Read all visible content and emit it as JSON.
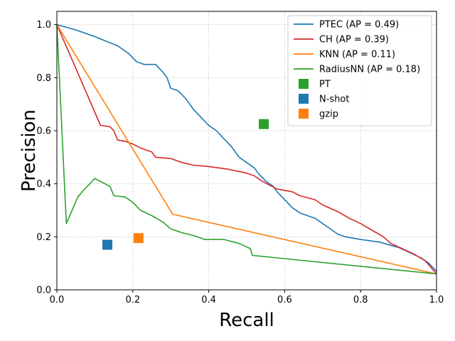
{
  "chart_data": {
    "type": "line",
    "xlabel": "Recall",
    "ylabel": "Precision",
    "xlim": [
      0,
      1
    ],
    "ylim": [
      0,
      1.05
    ],
    "xticks": [
      "0.0",
      "0.2",
      "0.4",
      "0.6",
      "0.8",
      "1.0"
    ],
    "yticks": [
      "0.0",
      "0.2",
      "0.4",
      "0.6",
      "0.8",
      "1.0"
    ],
    "grid": true,
    "legend_position": "top-right",
    "series": [
      {
        "name": "PTEC (AP = 0.49)",
        "color": "#1f77b4",
        "points": [
          [
            0,
            1.0
          ],
          [
            0.05,
            0.98
          ],
          [
            0.1,
            0.955
          ],
          [
            0.16,
            0.92
          ],
          [
            0.19,
            0.89
          ],
          [
            0.21,
            0.86
          ],
          [
            0.23,
            0.85
          ],
          [
            0.26,
            0.85
          ],
          [
            0.28,
            0.82
          ],
          [
            0.29,
            0.8
          ],
          [
            0.3,
            0.76
          ],
          [
            0.32,
            0.75
          ],
          [
            0.34,
            0.72
          ],
          [
            0.36,
            0.68
          ],
          [
            0.38,
            0.65
          ],
          [
            0.4,
            0.62
          ],
          [
            0.42,
            0.6
          ],
          [
            0.44,
            0.57
          ],
          [
            0.46,
            0.54
          ],
          [
            0.48,
            0.5
          ],
          [
            0.5,
            0.48
          ],
          [
            0.52,
            0.46
          ],
          [
            0.53,
            0.44
          ],
          [
            0.55,
            0.41
          ],
          [
            0.57,
            0.39
          ],
          [
            0.58,
            0.37
          ],
          [
            0.6,
            0.34
          ],
          [
            0.62,
            0.31
          ],
          [
            0.64,
            0.29
          ],
          [
            0.66,
            0.28
          ],
          [
            0.68,
            0.27
          ],
          [
            0.7,
            0.25
          ],
          [
            0.72,
            0.23
          ],
          [
            0.74,
            0.21
          ],
          [
            0.76,
            0.2
          ],
          [
            0.8,
            0.19
          ],
          [
            0.85,
            0.18
          ],
          [
            0.9,
            0.16
          ],
          [
            0.93,
            0.14
          ],
          [
            0.96,
            0.12
          ],
          [
            0.98,
            0.1
          ],
          [
            1.0,
            0.07
          ]
        ]
      },
      {
        "name": "CH (AP = 0.39)",
        "color": "#d62728",
        "points": [
          [
            0,
            1.0
          ],
          [
            0.115,
            0.62
          ],
          [
            0.14,
            0.615
          ],
          [
            0.15,
            0.6
          ],
          [
            0.16,
            0.565
          ],
          [
            0.18,
            0.56
          ],
          [
            0.2,
            0.55
          ],
          [
            0.22,
            0.535
          ],
          [
            0.25,
            0.52
          ],
          [
            0.26,
            0.5
          ],
          [
            0.3,
            0.495
          ],
          [
            0.33,
            0.48
          ],
          [
            0.36,
            0.47
          ],
          [
            0.4,
            0.465
          ],
          [
            0.45,
            0.455
          ],
          [
            0.5,
            0.44
          ],
          [
            0.52,
            0.43
          ],
          [
            0.54,
            0.41
          ],
          [
            0.58,
            0.38
          ],
          [
            0.62,
            0.37
          ],
          [
            0.64,
            0.355
          ],
          [
            0.68,
            0.34
          ],
          [
            0.7,
            0.32
          ],
          [
            0.74,
            0.295
          ],
          [
            0.77,
            0.27
          ],
          [
            0.8,
            0.25
          ],
          [
            0.83,
            0.225
          ],
          [
            0.86,
            0.2
          ],
          [
            0.88,
            0.175
          ],
          [
            0.91,
            0.155
          ],
          [
            0.94,
            0.135
          ],
          [
            0.97,
            0.11
          ],
          [
            1.0,
            0.06
          ]
        ]
      },
      {
        "name": "KNN (AP = 0.11)",
        "color": "#ff7f0e",
        "points": [
          [
            0,
            1.0
          ],
          [
            0.305,
            0.285
          ],
          [
            1.0,
            0.06
          ]
        ]
      },
      {
        "name": "RadiusNN (AP = 0.18)",
        "color": "#2ca02c",
        "points": [
          [
            0,
            1.0
          ],
          [
            0.025,
            0.25
          ],
          [
            0.04,
            0.3
          ],
          [
            0.055,
            0.35
          ],
          [
            0.07,
            0.375
          ],
          [
            0.08,
            0.39
          ],
          [
            0.1,
            0.42
          ],
          [
            0.12,
            0.405
          ],
          [
            0.14,
            0.39
          ],
          [
            0.15,
            0.355
          ],
          [
            0.18,
            0.35
          ],
          [
            0.2,
            0.33
          ],
          [
            0.22,
            0.3
          ],
          [
            0.25,
            0.28
          ],
          [
            0.28,
            0.255
          ],
          [
            0.3,
            0.23
          ],
          [
            0.33,
            0.215
          ],
          [
            0.36,
            0.205
          ],
          [
            0.39,
            0.19
          ],
          [
            0.44,
            0.19
          ],
          [
            0.48,
            0.175
          ],
          [
            0.51,
            0.155
          ],
          [
            0.515,
            0.13
          ],
          [
            1.0,
            0.06
          ]
        ]
      }
    ],
    "markers": [
      {
        "name": "PT",
        "color": "#2ca02c",
        "x": 0.545,
        "y": 0.625
      },
      {
        "name": "N-shot",
        "color": "#1f77b4",
        "x": 0.133,
        "y": 0.17
      },
      {
        "name": "gzip",
        "color": "#ff7f0e",
        "x": 0.215,
        "y": 0.195
      }
    ]
  }
}
